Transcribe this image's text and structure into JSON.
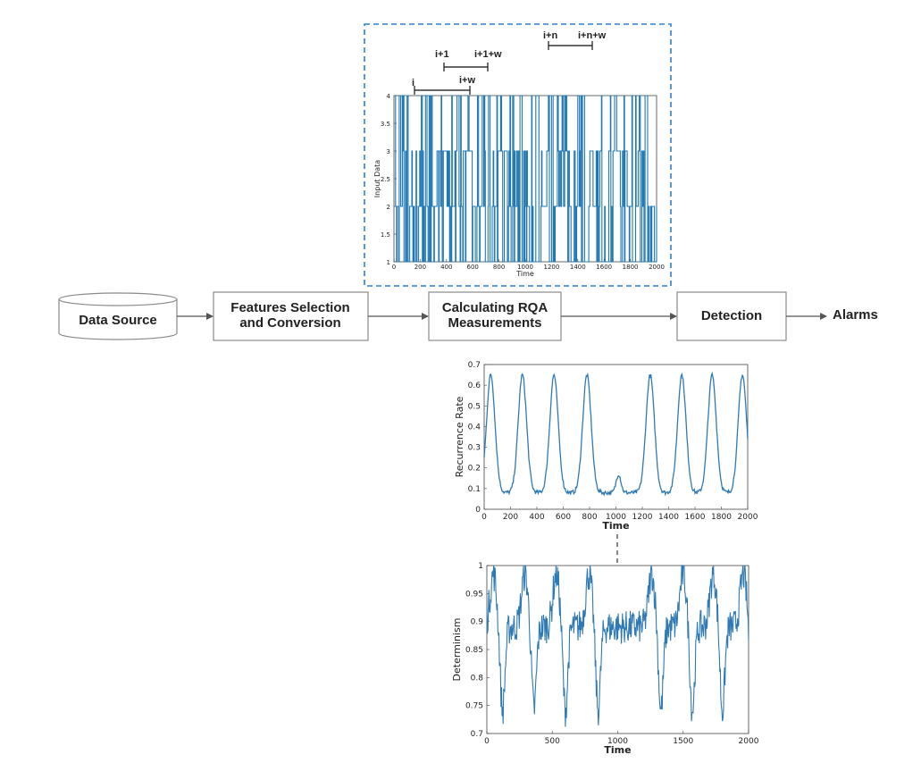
{
  "colors": {
    "series": "#2f7ab4",
    "series_input": "#1f78b4",
    "dashed_frame": "#2e7fd0",
    "box_stroke": "#8a8a8a",
    "arrow": "#555555"
  },
  "pipeline": {
    "data_source": "Data Source",
    "features_line1": "Features Selection",
    "features_line2": "and Conversion",
    "rqa_line1": "Calculating RQA",
    "rqa_line2": "Measurements",
    "detection": "Detection",
    "alarms": "Alarms"
  },
  "windows": {
    "w1_start": "i",
    "w1_end": "i+w",
    "w2_start": "i+1",
    "w2_end": "i+1+w",
    "w3_start": "i+n",
    "w3_end": "i+n+w"
  },
  "chart_data": [
    {
      "type": "line",
      "description_of_signal": "discrete-valued input sequence (values 1–4)",
      "xlabel": "Time",
      "ylabel": "Input Data",
      "xlim": [
        0,
        2000
      ],
      "ylim": [
        1,
        4
      ],
      "x_ticks": [
        "0",
        "200",
        "400",
        "600",
        "800",
        "1000",
        "1200",
        "1400",
        "1600",
        "1800",
        "2000"
      ],
      "y_ticks": [
        "1",
        "1.5",
        "2",
        "2.5",
        "3",
        "3.5",
        "4"
      ],
      "levels": [
        1,
        2,
        3,
        4
      ]
    },
    {
      "type": "line",
      "xlabel": "Time",
      "ylabel": "Recurrence Rate",
      "xlim": [
        0,
        2000
      ],
      "ylim": [
        0,
        0.7
      ],
      "x_ticks": [
        "0",
        "200",
        "400",
        "600",
        "800",
        "1000",
        "1200",
        "1400",
        "1600",
        "1800",
        "2000"
      ],
      "y_ticks": [
        "0",
        "0.1",
        "0.2",
        "0.3",
        "0.4",
        "0.5",
        "0.6",
        "0.7"
      ],
      "peak_times": [
        50,
        290,
        530,
        780,
        1260,
        1500,
        1730,
        1960
      ],
      "peak_value": 0.65,
      "baseline_value": 0.08,
      "bump": {
        "time": 1020,
        "value": 0.17
      }
    },
    {
      "type": "line",
      "xlabel": "Time",
      "ylabel": "Determinism",
      "xlim": [
        0,
        2000
      ],
      "ylim": [
        0.7,
        1
      ],
      "x_ticks": [
        "0",
        "500",
        "1000",
        "1500",
        "2000"
      ],
      "y_ticks": [
        "0.7",
        "0.75",
        "0.8",
        "0.85",
        "0.9",
        "0.95",
        "1"
      ],
      "peak_times": [
        50,
        290,
        530,
        780,
        1260,
        1500,
        1730,
        1960
      ],
      "peak_value": 0.985,
      "trough_value": 0.74,
      "noise_band": [
        0.86,
        0.92
      ]
    }
  ]
}
